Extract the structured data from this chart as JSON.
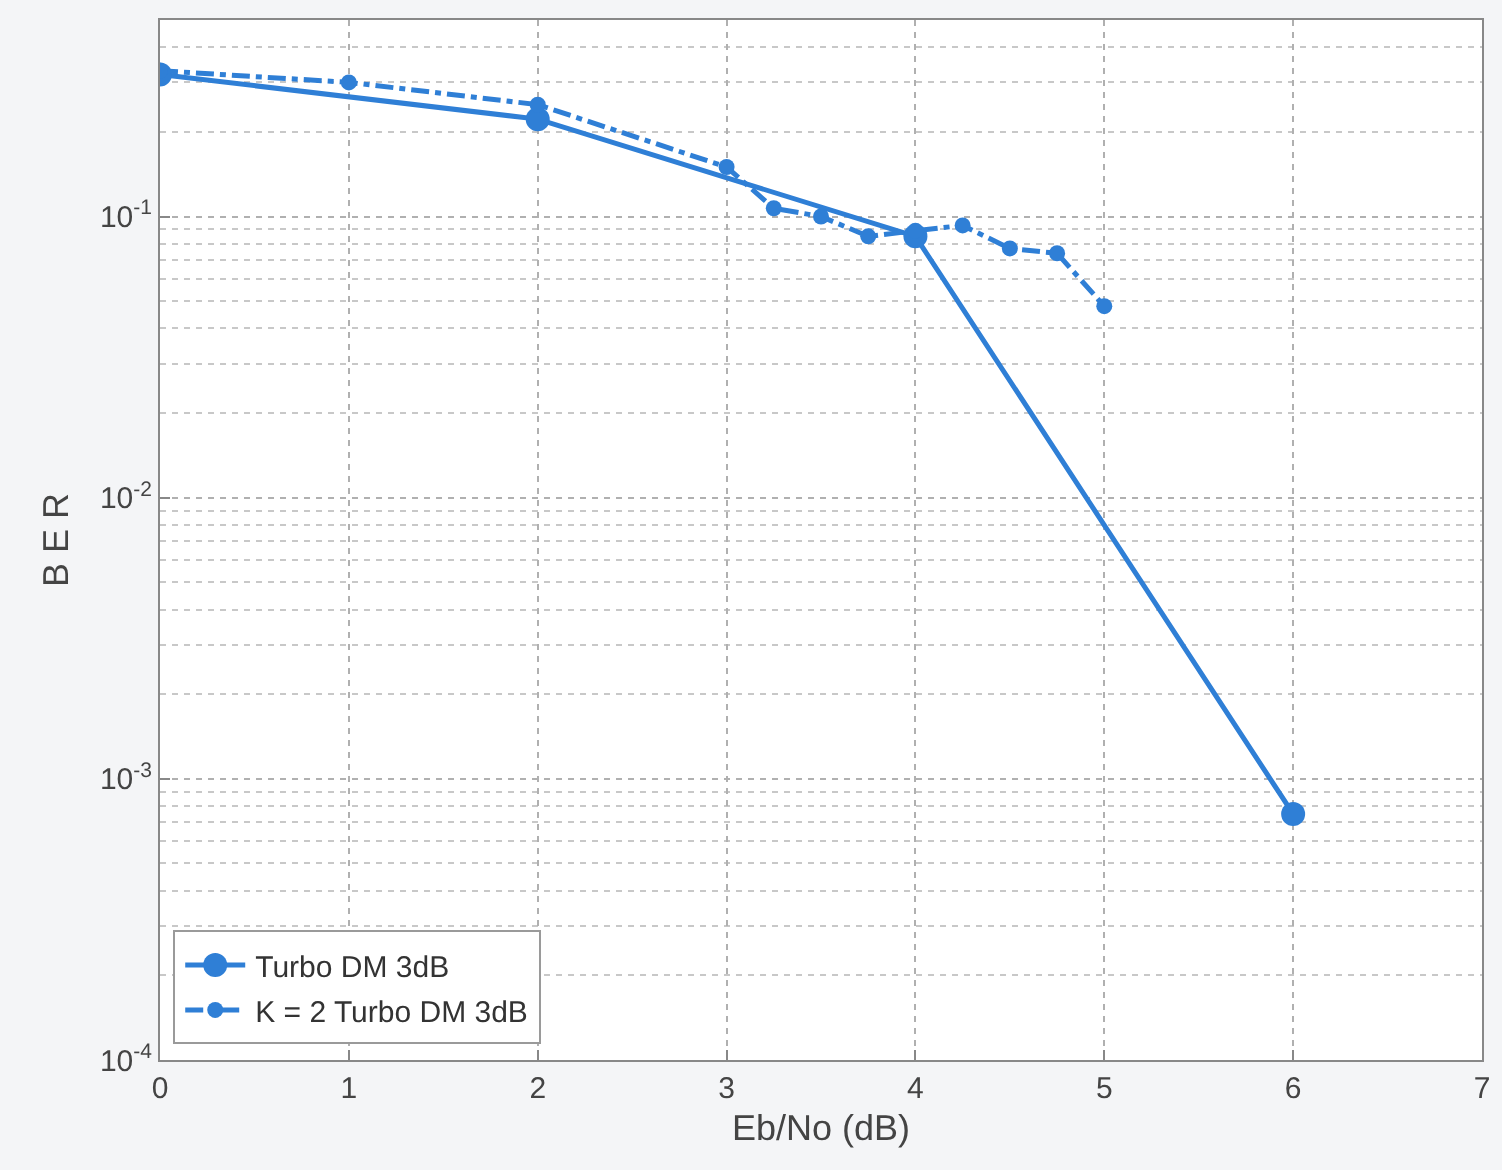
{
  "chart_data": {
    "type": "line",
    "xlabel": "Eb/No (dB)",
    "ylabel": "B E R",
    "log": "y",
    "grid": true,
    "legend": "bottom left",
    "marker": "circle",
    "xlim": [
      0,
      7
    ],
    "xticks": [
      0,
      1,
      2,
      3,
      4,
      5,
      6,
      7
    ],
    "ylim": [
      0.0001,
      0.5
    ],
    "yticks": [
      {
        "value": 0.0001,
        "label": "10$^{-4}$"
      },
      {
        "value": 0.001,
        "label": "10$^{-3}$"
      },
      {
        "value": 0.01,
        "label": "10$^{-2}$"
      },
      {
        "value": 0.1,
        "label": "10$^{-1}$"
      }
    ],
    "series": [
      {
        "name": "Turbo DM 3dB",
        "color": "#2f7fd6",
        "line_style": "solid",
        "x": [
          0,
          2,
          4,
          6
        ],
        "values": [
          0.32,
          0.222,
          0.085,
          0.00075
        ]
      },
      {
        "name": "K = 2 Turbo DM 3dB",
        "color": "#2f7fd6",
        "line_style": "dashed",
        "x": [
          0,
          1,
          2,
          3,
          3.25,
          3.5,
          3.75,
          4,
          4.25,
          4.5,
          4.75,
          5
        ],
        "values": [
          0.33,
          0.3,
          0.25,
          0.15,
          0.107,
          0.1,
          0.085,
          0.089,
          0.093,
          0.077,
          0.074,
          0.048
        ]
      }
    ]
  }
}
